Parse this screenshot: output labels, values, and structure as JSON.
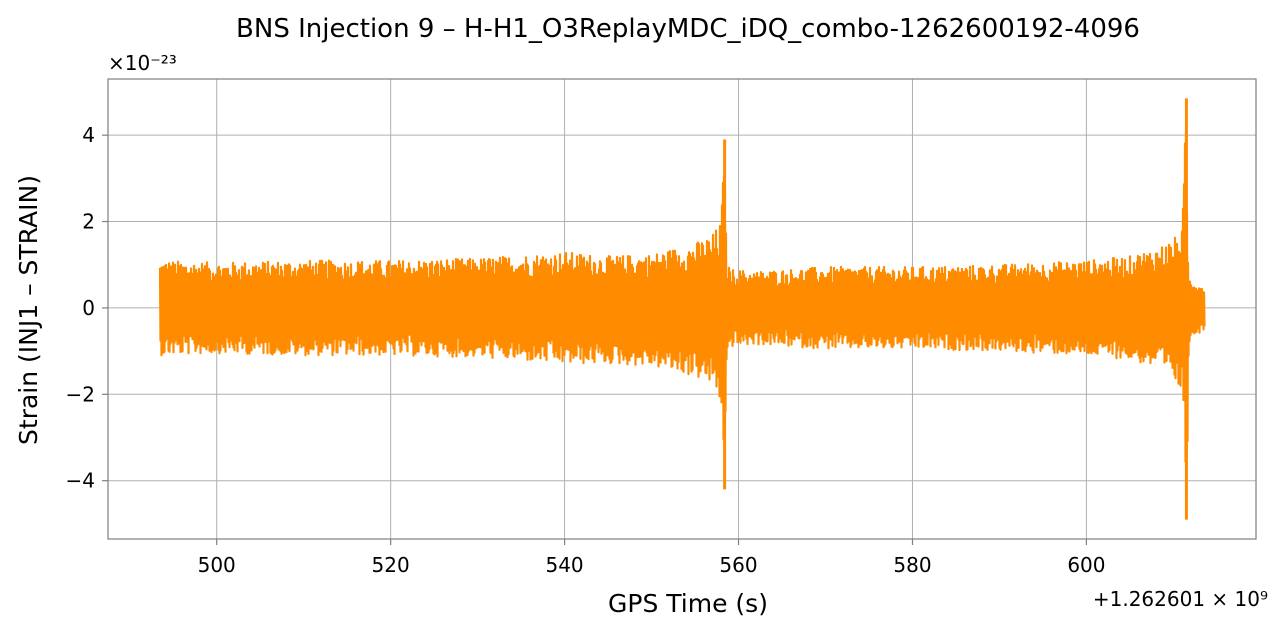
{
  "chart_data": {
    "type": "line",
    "title": "BNS Injection 9 – H-H1_O3ReplayMDC_iDQ_combo-1262600192-4096",
    "xlabel": "GPS Time (s)",
    "ylabel": "Strain (INJ1 – STRAIN)",
    "x_offset_label": "+1.262601 × 10⁹",
    "y_scale_label": "×10⁻²³",
    "xlim": [
      487.5,
      619.5
    ],
    "ylim": [
      -5.35,
      5.3
    ],
    "xticks": [
      500,
      520,
      540,
      560,
      580,
      600
    ],
    "yticks": [
      -4,
      -2,
      0,
      2,
      4
    ],
    "xtick_labels": [
      "500",
      "520",
      "540",
      "560",
      "580",
      "600"
    ],
    "ytick_labels": [
      "−4",
      "−2",
      "0",
      "2",
      "4"
    ],
    "grid": true,
    "series": [
      {
        "color": "#ff8c00",
        "envelope": {
          "x": [
            493.5,
            500,
            510,
            520,
            530,
            540,
            545,
            550,
            553,
            555,
            557,
            558.0,
            558.4,
            558.6,
            559,
            562,
            570,
            580,
            590,
            600,
            605,
            608,
            610,
            611.0,
            611.5,
            611.7,
            612,
            613.5
          ],
          "upper": [
            1.1,
            1.05,
            1.1,
            1.1,
            1.15,
            1.3,
            1.2,
            1.25,
            1.4,
            1.5,
            1.7,
            2.0,
            3.9,
            1.2,
            0.9,
            0.85,
            0.95,
            0.95,
            1.0,
            1.1,
            1.2,
            1.4,
            1.6,
            1.8,
            4.85,
            0.8,
            0.7,
            0.5
          ],
          "lower": [
            -1.1,
            -1.05,
            -1.1,
            -1.1,
            -1.15,
            -1.3,
            -1.3,
            -1.35,
            -1.5,
            -1.6,
            -1.8,
            -2.3,
            -4.2,
            -1.2,
            -0.9,
            -0.85,
            -0.95,
            -0.95,
            -1.0,
            -1.1,
            -1.2,
            -1.4,
            -1.7,
            -2.0,
            -4.9,
            -0.8,
            -0.7,
            -0.5
          ]
        }
      }
    ]
  }
}
